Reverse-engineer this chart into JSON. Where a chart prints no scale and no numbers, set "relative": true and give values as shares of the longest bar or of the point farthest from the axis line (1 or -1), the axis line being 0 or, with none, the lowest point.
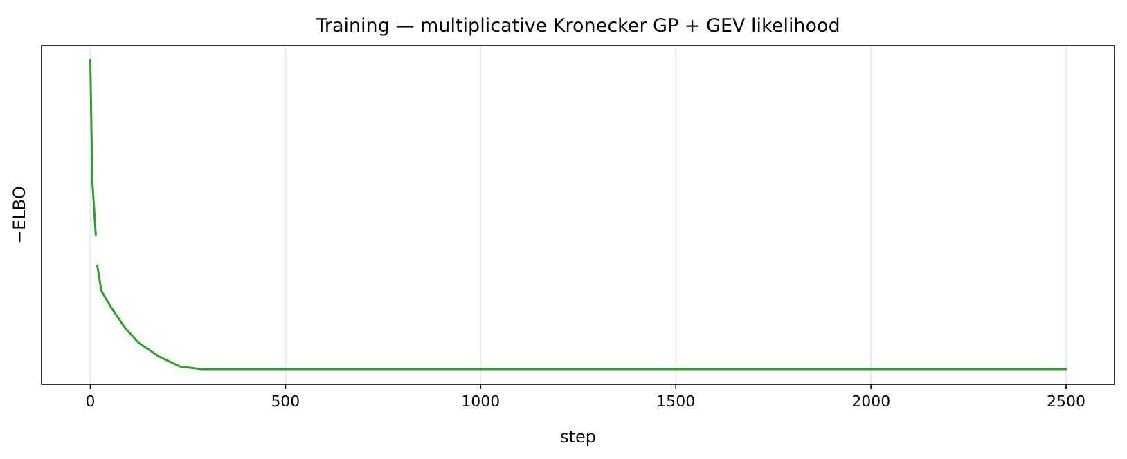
{
  "chart_data": {
    "type": "line",
    "title": "Training — multiplicative Kronecker GP + GEV likelihood",
    "xlabel": "step",
    "ylabel": "−ELBO",
    "relative": true,
    "xlim": [
      -125,
      2624
    ],
    "xticks": [
      0,
      500,
      1000,
      1500,
      2000,
      2500
    ],
    "grid": "x",
    "tick_labels": "x",
    "marker": "none",
    "line_style": "solid",
    "series": [
      {
        "color": "#2ca02c",
        "x": [
          0,
          5,
          14,
          16,
          18,
          28,
          53,
          89,
          124,
          177,
          230,
          284,
          500,
          1000,
          1500,
          2000,
          2500
        ],
        "values": [
          1,
          0.63,
          0.46,
          null,
          0.366,
          0.289,
          0.238,
          0.174,
          0.128,
          0.085,
          0.055,
          0.047,
          0.047,
          0.047,
          0.047,
          0.047,
          0.047
        ]
      }
    ]
  }
}
